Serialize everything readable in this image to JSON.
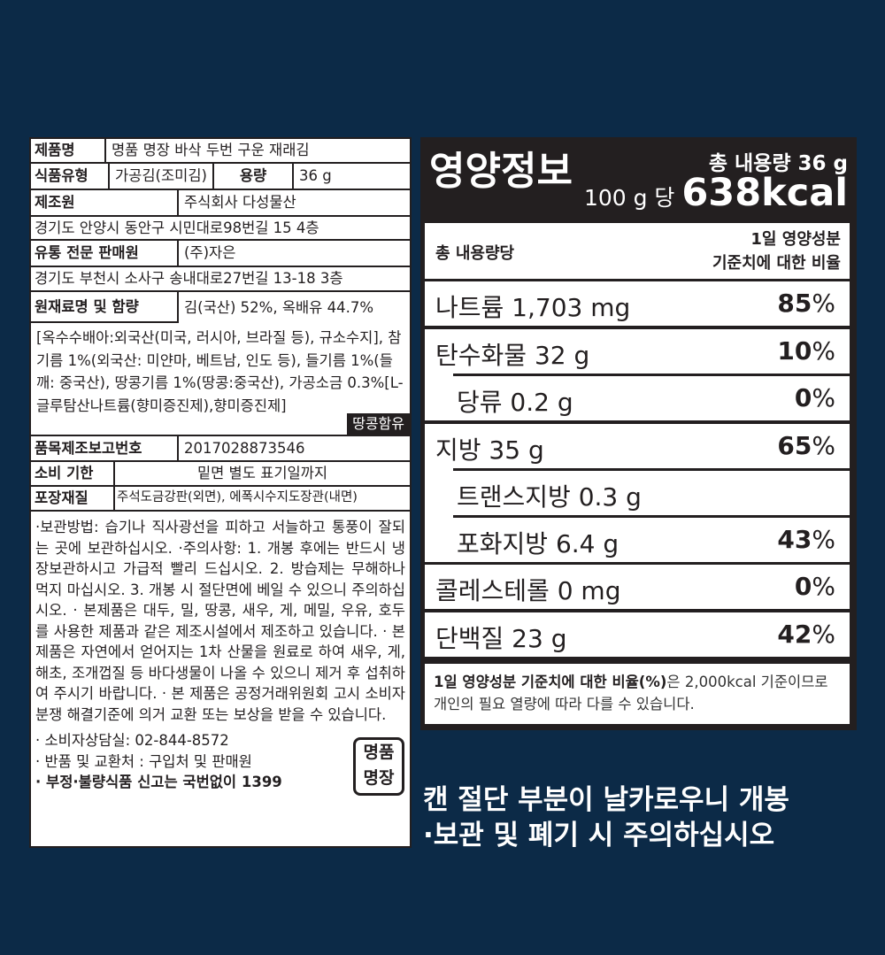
{
  "label": {
    "product_name_label": "제품명",
    "product_name": "명품 명장 바삭 두번 구운 재래김",
    "food_type_label": "식품유형",
    "food_type": "가공김(조미김)",
    "volume_label": "용량",
    "volume": "36 g",
    "manufacturer_label": "제조원",
    "manufacturer": "주식회사 다성물산",
    "manufacturer_address": "경기도 안양시 동안구 시민대로98번길 15 4층",
    "distributor_label": "유통 전문 판매원",
    "distributor": "(주)자은",
    "distributor_address": "경기도 부천시 소사구 송내대로27번길 13-18 3층",
    "ingredients_label": "원재료명 및 함량",
    "ingredients_head": "김(국산) 52%, 옥배유 44.7%",
    "ingredients_body": "[옥수수배아:외국산(미국, 러시아, 브라질 등), 규소수지], 참기름 1%(외국산: 미얀마, 베트남, 인도 등), 들기름 1%(들깨: 중국산), 땅콩기름 1%(땅콩:중국산), 가공소금 0.3%[L-글루탐산나트륨(향미증진제),향미증진제]",
    "allergen_badge": "땅콩함유",
    "report_no_label": "품목제조보고번호",
    "report_no": "2017028873546",
    "expiry_label": "소비 기한",
    "expiry": "밑면 별도 표기일까지",
    "packaging_label": "포장재질",
    "packaging": "주석도금강판(외면), 에폭시수지도장관(내면)",
    "care_text": "·보관방법: 습기나 직사광선을 피하고 서늘하고 통풍이 잘되는 곳에 보관하십시오. ·주의사항: 1. 개봉 후에는 반드시 냉장보관하시고 가급적 빨리 드십시오. 2. 방습제는 무해하나 먹지 마십시오. 3. 개봉 시 절단면에 베일 수 있으니 주의하십시오. · 본제품은 대두, 밀, 땅콩, 새우, 게, 메밀, 우유, 호두를 사용한 제품과 같은 제조시설에서 제조하고 있습니다. · 본 제품은 자연에서 얻어지는 1차 산물을 원료로 하여 새우, 게, 해초, 조개껍질 등 바다생물이 나올 수 있으니 제거 후 섭취하여 주시기 바랍니다. · 본 제품은 공정거래위원회 고시 소비자 분쟁 해결기준에 의거 교환 또는 보상을 받을 수 있습니다.",
    "consumer_center": "· 소비자상담실: 02-844-8572",
    "returns": "· 반품 및 교환처 : 구입처 및 판매원",
    "report_line": "· 부정·불량식품 신고는 국번없이 1399",
    "stamp_top": "명품",
    "stamp_bottom": "명장"
  },
  "nutrition": {
    "title": "영양정보",
    "total": "총 내용량 36 g",
    "per_prefix": "100 g 당",
    "kcal": "638kcal",
    "header_left": "총 내용량당",
    "header_right_1": "1일 영양성분",
    "header_right_2": "기준치에 대한 비율",
    "rows": [
      {
        "name": "나트륨 1,703 mg",
        "pct": "85",
        "unit": "%"
      },
      {
        "name": "탄수화물 32 g",
        "pct": "10",
        "unit": "%"
      },
      {
        "name": "당류 0.2 g",
        "pct": "0",
        "unit": "%"
      },
      {
        "name": "지방 35 g",
        "pct": "65",
        "unit": "%"
      },
      {
        "name": "트랜스지방 0.3 g",
        "pct": "",
        "unit": ""
      },
      {
        "name": "포화지방 6.4 g",
        "pct": "43",
        "unit": "%"
      },
      {
        "name": "콜레스테롤 0 mg",
        "pct": "0",
        "unit": "%"
      },
      {
        "name": "단백질 23 g",
        "pct": "42",
        "unit": "%"
      }
    ],
    "note_bold": "1일 영양성분 기준치에 대한 비율(%)",
    "note_rest": "은 2,000kcal 기준이므로 개인의 필요 열량에 따라 다를 수 있습니다."
  },
  "warning": {
    "line1": "캔 절단 부분이 날카로우니 개봉",
    "line2": "·보관 및 폐기 시 주의하십시오"
  }
}
